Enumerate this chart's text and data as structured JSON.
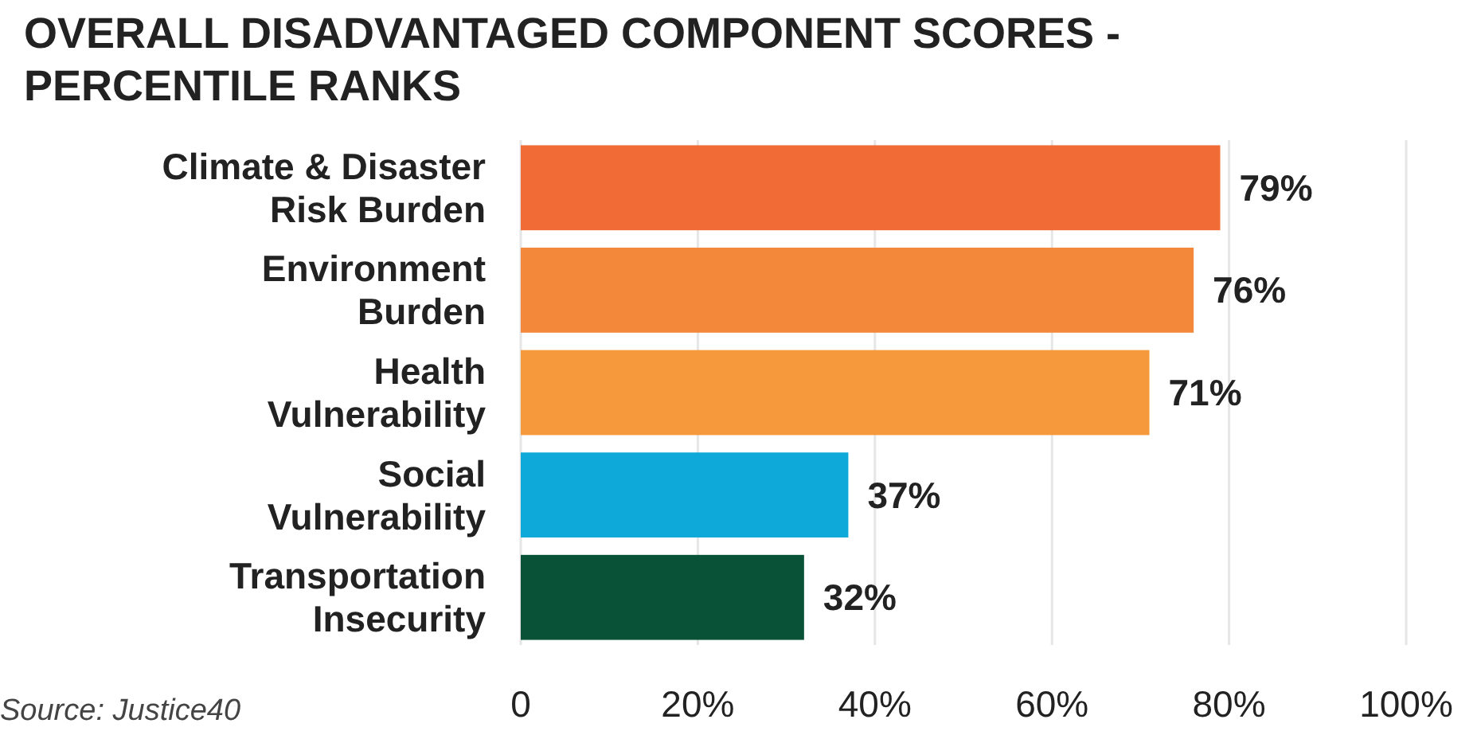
{
  "chart_data": {
    "type": "bar",
    "orientation": "horizontal",
    "title": "OVERALL DISADVANTAGED COMPONENT SCORES - PERCENTILE RANKS",
    "categories": [
      "Climate & Disaster Risk Burden",
      "Environment Burden",
      "Health Vulnerability",
      "Social Vulnerability",
      "Transportation Insecurity"
    ],
    "values": [
      79,
      76,
      71,
      37,
      32
    ],
    "colors": [
      "#f06b35",
      "#f3873a",
      "#f6993c",
      "#0ea9d8",
      "#0a5237"
    ],
    "value_labels": [
      "79%",
      "76%",
      "71%",
      "37%",
      "32%"
    ],
    "xlim": [
      0,
      100
    ],
    "xticks": [
      0,
      {
        "value": 20,
        "label": "20%"
      },
      {
        "value": 40,
        "label": "40%"
      },
      {
        "value": 60,
        "label": "60%"
      },
      {
        "value": 80,
        "label": "80%"
      },
      {
        "value": 100,
        "label": "100%"
      }
    ],
    "grid": "x",
    "annotations": [
      "Source: Justice40"
    ]
  }
}
